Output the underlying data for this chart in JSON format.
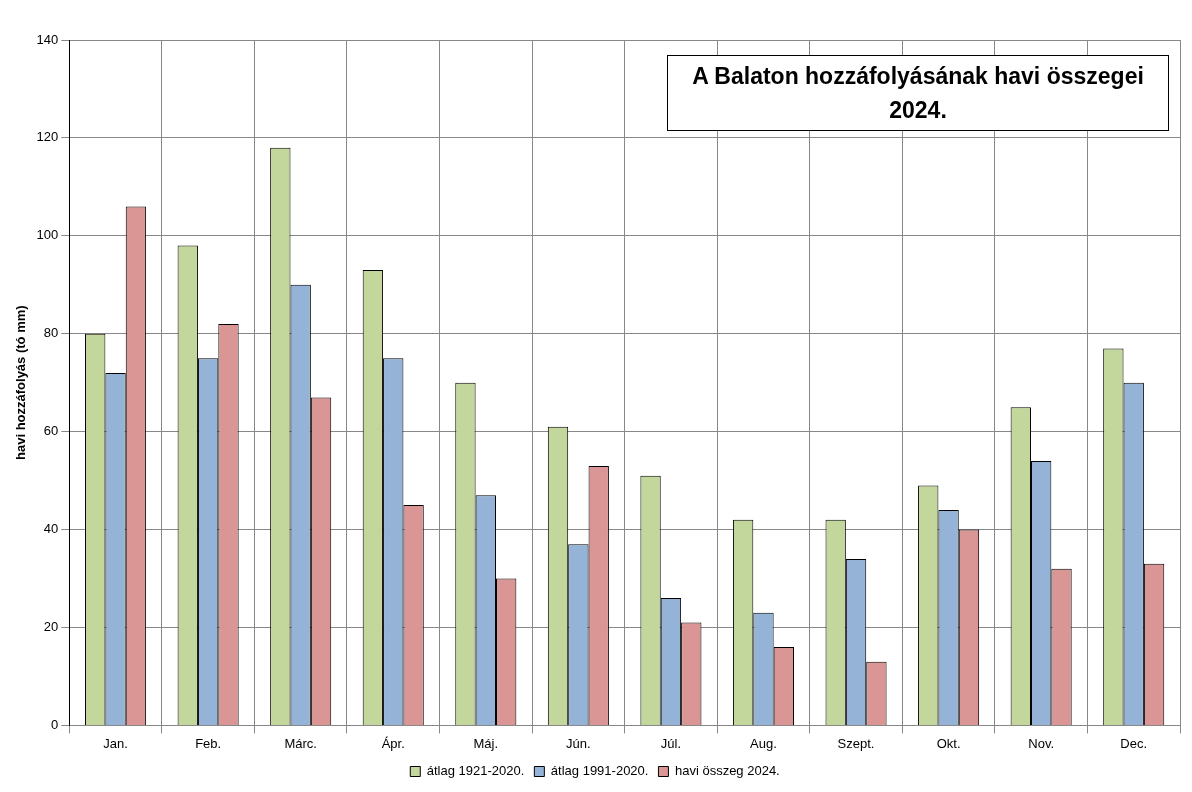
{
  "chart_data": {
    "type": "bar",
    "title": "A Balaton hozzáfolyásának havi összegei 2024.",
    "ylabel": "havi hozzáfolyás (tó mm)",
    "categories": [
      "Jan.",
      "Feb.",
      "Márc.",
      "Ápr.",
      "Máj.",
      "Jún.",
      "Júl.",
      "Aug.",
      "Szept.",
      "Okt.",
      "Nov.",
      "Dec."
    ],
    "series": [
      {
        "name": "átlag 1921-2020.",
        "color": "#c3d69b",
        "values": [
          80,
          98,
          118,
          93,
          70,
          61,
          51,
          42,
          42,
          49,
          65,
          77
        ]
      },
      {
        "name": "átlag 1991-2020.",
        "color": "#95b3d7",
        "values": [
          72,
          75,
          90,
          75,
          47,
          37,
          26,
          23,
          34,
          44,
          54,
          70
        ]
      },
      {
        "name": "havi összeg 2024.",
        "color": "#d99694",
        "values": [
          106,
          82,
          67,
          45,
          30,
          53,
          21,
          16,
          13,
          40,
          32,
          33
        ]
      }
    ],
    "ylim": [
      0,
      140
    ],
    "yticks": [
      0,
      20,
      40,
      60,
      80,
      100,
      120,
      140
    ],
    "grid": true,
    "legend": "bottom"
  }
}
